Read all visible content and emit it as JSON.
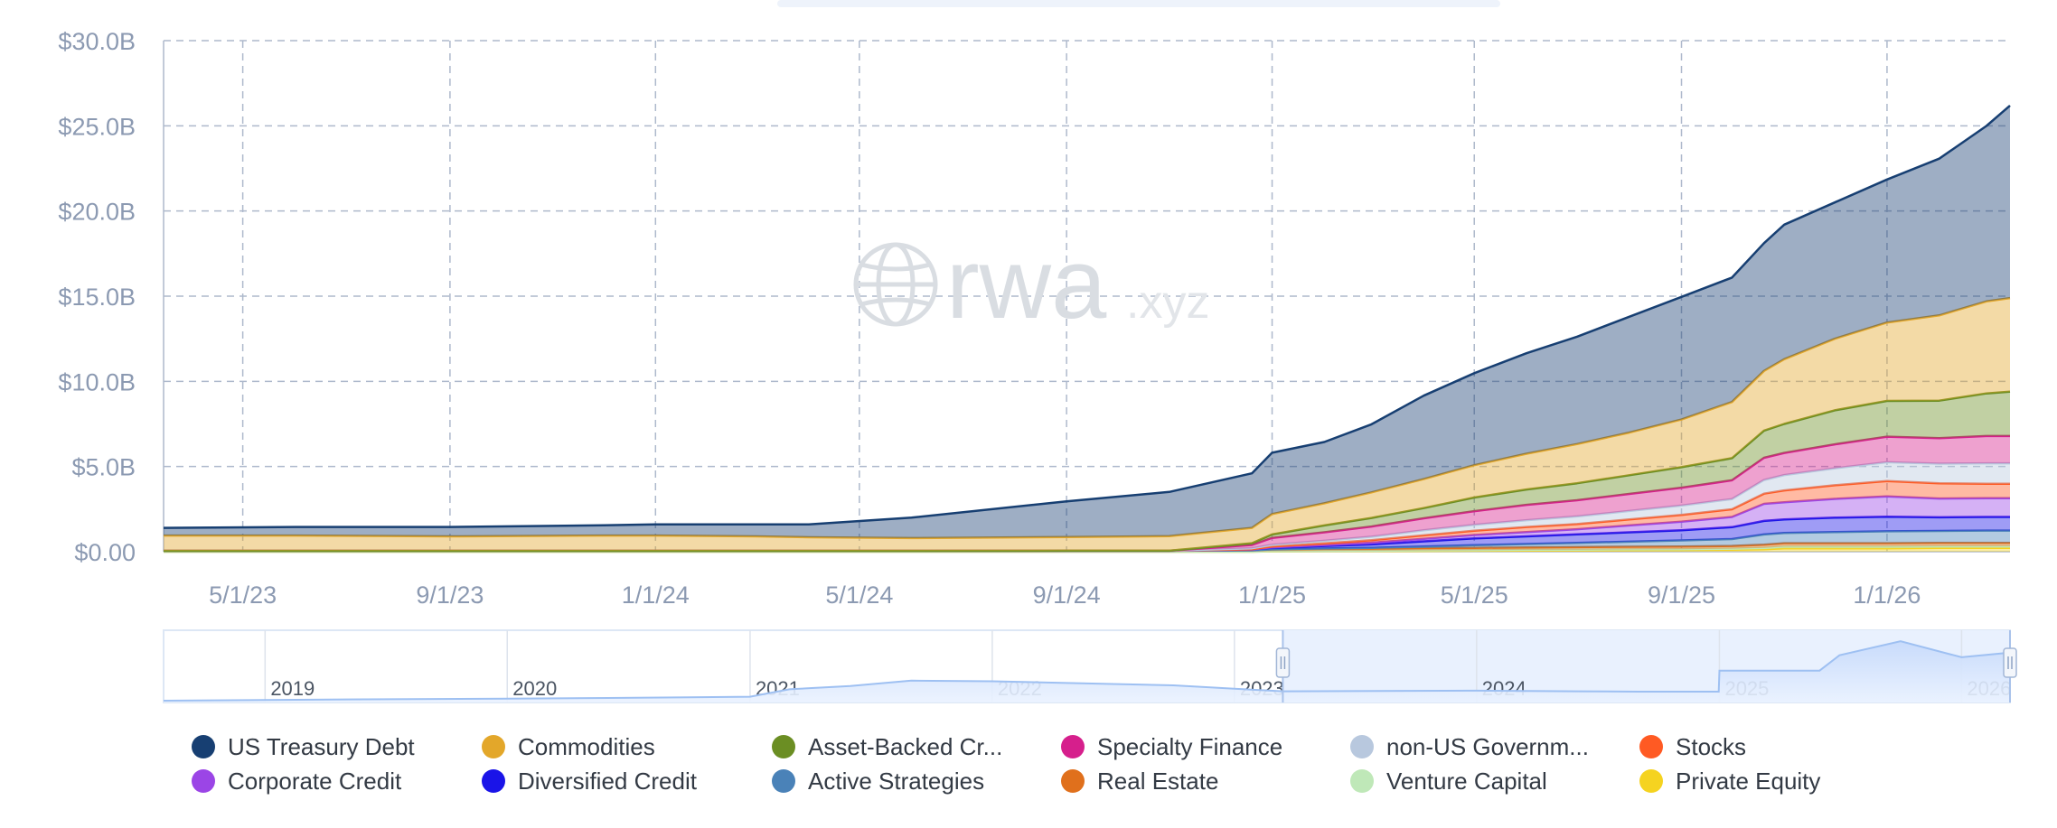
{
  "chart_data": {
    "type": "area",
    "stacked": true,
    "y_tick_labels": [
      "$0.00",
      "$5.0B",
      "$10.0B",
      "$15.0B",
      "$20.0B",
      "$25.0B",
      "$30.0B"
    ],
    "y_ticks": [
      0,
      5,
      10,
      15,
      20,
      25,
      30
    ],
    "ylim": [
      0,
      30
    ],
    "y_unit": "billion USD",
    "x_tick_labels": [
      "5/1/23",
      "9/1/23",
      "1/1/24",
      "5/1/24",
      "9/1/24",
      "1/1/25",
      "5/1/25",
      "9/1/25",
      "1/1/26"
    ],
    "x_range": [
      "2023-03-15",
      "2026-03-15"
    ],
    "grid": true,
    "legend_position": "bottom",
    "watermark": "rwa.xyz",
    "x": [
      "2023-03-15",
      "2023-06-01",
      "2023-09-01",
      "2023-12-01",
      "2024-01-01",
      "2024-03-01",
      "2024-04-01",
      "2024-06-01",
      "2024-09-01",
      "2024-11-01",
      "2024-12-20",
      "2025-01-01",
      "2025-02-01",
      "2025-03-01",
      "2025-04-01",
      "2025-05-01",
      "2025-06-01",
      "2025-07-01",
      "2025-08-01",
      "2025-09-01",
      "2025-10-01",
      "2025-10-20",
      "2025-11-01",
      "2025-12-01",
      "2026-01-01",
      "2026-02-01",
      "2026-03-01",
      "2026-03-15"
    ],
    "series": [
      {
        "name": "Private Equity",
        "color": "#f5d320",
        "values": [
          0,
          0,
          0,
          0,
          0,
          0,
          0,
          0,
          0,
          0,
          0,
          0.02,
          0.03,
          0.04,
          0.05,
          0.06,
          0.07,
          0.08,
          0.09,
          0.1,
          0.12,
          0.15,
          0.2,
          0.2,
          0.2,
          0.22,
          0.22,
          0.22
        ]
      },
      {
        "name": "Venture Capital",
        "color": "#bfe8b8",
        "values": [
          0,
          0,
          0,
          0,
          0,
          0,
          0,
          0,
          0,
          0,
          0,
          0.01,
          0.02,
          0.02,
          0.03,
          0.03,
          0.04,
          0.04,
          0.05,
          0.05,
          0.06,
          0.08,
          0.1,
          0.1,
          0.1,
          0.1,
          0.1,
          0.1
        ]
      },
      {
        "name": "Real Estate",
        "color": "#e0701c",
        "values": [
          0.05,
          0.05,
          0.05,
          0.05,
          0.05,
          0.05,
          0.05,
          0.05,
          0.06,
          0.06,
          0.08,
          0.1,
          0.12,
          0.12,
          0.13,
          0.14,
          0.14,
          0.15,
          0.15,
          0.16,
          0.16,
          0.18,
          0.2,
          0.2,
          0.2,
          0.2,
          0.2,
          0.2
        ]
      },
      {
        "name": "Active Strategies",
        "color": "#4a82b8",
        "values": [
          0,
          0,
          0,
          0,
          0,
          0,
          0,
          0,
          0,
          0,
          0,
          0.01,
          0.02,
          0.05,
          0.1,
          0.15,
          0.2,
          0.25,
          0.3,
          0.35,
          0.4,
          0.6,
          0.6,
          0.65,
          0.7,
          0.7,
          0.72,
          0.72
        ]
      },
      {
        "name": "Diversified Credit",
        "color": "#1a14e8",
        "values": [
          0,
          0,
          0,
          0,
          0,
          0,
          0,
          0,
          0,
          0,
          0.05,
          0.1,
          0.15,
          0.2,
          0.3,
          0.4,
          0.45,
          0.5,
          0.55,
          0.6,
          0.7,
          0.8,
          0.8,
          0.85,
          0.85,
          0.8,
          0.8,
          0.8
        ]
      },
      {
        "name": "Corporate Credit",
        "color": "#9b45e6",
        "values": [
          0,
          0,
          0,
          0,
          0,
          0,
          0,
          0,
          0,
          0,
          0,
          0.02,
          0.05,
          0.1,
          0.15,
          0.2,
          0.25,
          0.3,
          0.4,
          0.5,
          0.6,
          1.0,
          1.0,
          1.1,
          1.2,
          1.1,
          1.1,
          1.1
        ]
      },
      {
        "name": "Stocks",
        "color": "#ff5a23",
        "values": [
          0,
          0,
          0,
          0,
          0,
          0,
          0,
          0,
          0,
          0,
          0.02,
          0.05,
          0.1,
          0.15,
          0.2,
          0.25,
          0.3,
          0.3,
          0.35,
          0.4,
          0.45,
          0.6,
          0.7,
          0.8,
          0.9,
          0.9,
          0.85,
          0.85
        ]
      },
      {
        "name": "non-US Government Debt",
        "color": "#b8c8de",
        "values": [
          0,
          0,
          0,
          0,
          0,
          0,
          0,
          0,
          0,
          0,
          0.05,
          0.1,
          0.15,
          0.2,
          0.3,
          0.35,
          0.4,
          0.45,
          0.5,
          0.55,
          0.6,
          0.8,
          0.9,
          1.0,
          1.1,
          1.15,
          1.2,
          1.2
        ]
      },
      {
        "name": "Specialty Finance",
        "color": "#d61f8c",
        "values": [
          0,
          0,
          0,
          0,
          0,
          0,
          0,
          0,
          0,
          0,
          0.2,
          0.4,
          0.5,
          0.6,
          0.7,
          0.8,
          0.9,
          0.95,
          1.0,
          1.05,
          1.1,
          1.3,
          1.3,
          1.4,
          1.5,
          1.5,
          1.6,
          1.6
        ]
      },
      {
        "name": "Asset-Backed Credit",
        "color": "#6b8e23",
        "values": [
          0,
          0,
          0,
          0,
          0,
          0,
          0,
          0,
          0,
          0,
          0.1,
          0.2,
          0.4,
          0.5,
          0.6,
          0.8,
          0.9,
          1.0,
          1.1,
          1.2,
          1.3,
          1.6,
          1.7,
          2.0,
          2.1,
          2.2,
          2.5,
          2.6
        ]
      },
      {
        "name": "Commodities",
        "color": "#e3a72a",
        "values": [
          0.9,
          0.9,
          0.85,
          0.9,
          0.9,
          0.85,
          0.8,
          0.75,
          0.8,
          0.85,
          0.9,
          1.2,
          1.3,
          1.5,
          1.7,
          1.9,
          2.1,
          2.3,
          2.5,
          2.8,
          3.3,
          3.5,
          3.8,
          4.2,
          4.6,
          5.0,
          5.4,
          5.5
        ]
      },
      {
        "name": "US Treasury Debt",
        "color": "#173f72",
        "values": [
          0.45,
          0.5,
          0.55,
          0.6,
          0.65,
          0.7,
          0.75,
          1.2,
          2.1,
          2.6,
          3.2,
          3.6,
          3.6,
          4.0,
          4.9,
          5.4,
          5.9,
          6.3,
          6.8,
          7.2,
          7.3,
          7.5,
          7.9,
          8.0,
          8.4,
          9.2,
          10.3,
          11.3
        ]
      }
    ]
  },
  "legend": {
    "items": [
      {
        "label": "US Treasury Debt",
        "color": "#173f72"
      },
      {
        "label": "Commodities",
        "color": "#e3a72a"
      },
      {
        "label": "Asset-Backed Cr...",
        "color": "#6b8e23"
      },
      {
        "label": "Specialty Finance",
        "color": "#d61f8c"
      },
      {
        "label": "non-US Governm...",
        "color": "#b8c8de"
      },
      {
        "label": "Stocks",
        "color": "#ff5a23"
      },
      {
        "label": "Corporate Credit",
        "color": "#9b45e6"
      },
      {
        "label": "Diversified Credit",
        "color": "#1a14e8"
      },
      {
        "label": "Active Strategies",
        "color": "#4a82b8"
      },
      {
        "label": "Real Estate",
        "color": "#e0701c"
      },
      {
        "label": "Venture Capital",
        "color": "#bfe8b8"
      },
      {
        "label": "Private Equity",
        "color": "#f5d320"
      }
    ]
  },
  "navigator": {
    "year_labels": [
      "2019",
      "2020",
      "2021",
      "2022",
      "2023",
      "2024",
      "2025",
      "2026"
    ],
    "x_range": [
      "2018-08-01",
      "2026-03-15"
    ],
    "selected_range": [
      "2023-03-15",
      "2026-03-15"
    ],
    "x": [
      "2018-08-01",
      "2019-06-01",
      "2020-01-01",
      "2020-06-01",
      "2021-01-01",
      "2021-03-01",
      "2021-06-01",
      "2021-09-01",
      "2022-01-01",
      "2022-04-01",
      "2022-07-01",
      "2022-10-01",
      "2023-01-01",
      "2023-03-15",
      "2024-01-01",
      "2024-06-01",
      "2024-09-01",
      "2024-12-31",
      "2025-01-01",
      "2025-06-01",
      "2025-07-01",
      "2025-10-01",
      "2026-01-01",
      "2026-03-15"
    ],
    "values": [
      0.0,
      0.2,
      0.3,
      0.4,
      0.6,
      1.7,
      2.2,
      3.0,
      2.9,
      2.7,
      2.5,
      2.3,
      1.8,
      1.4,
      1.5,
      1.4,
      1.35,
      1.35,
      4.5,
      4.5,
      6.8,
      8.9,
      6.5,
      7.2
    ]
  }
}
